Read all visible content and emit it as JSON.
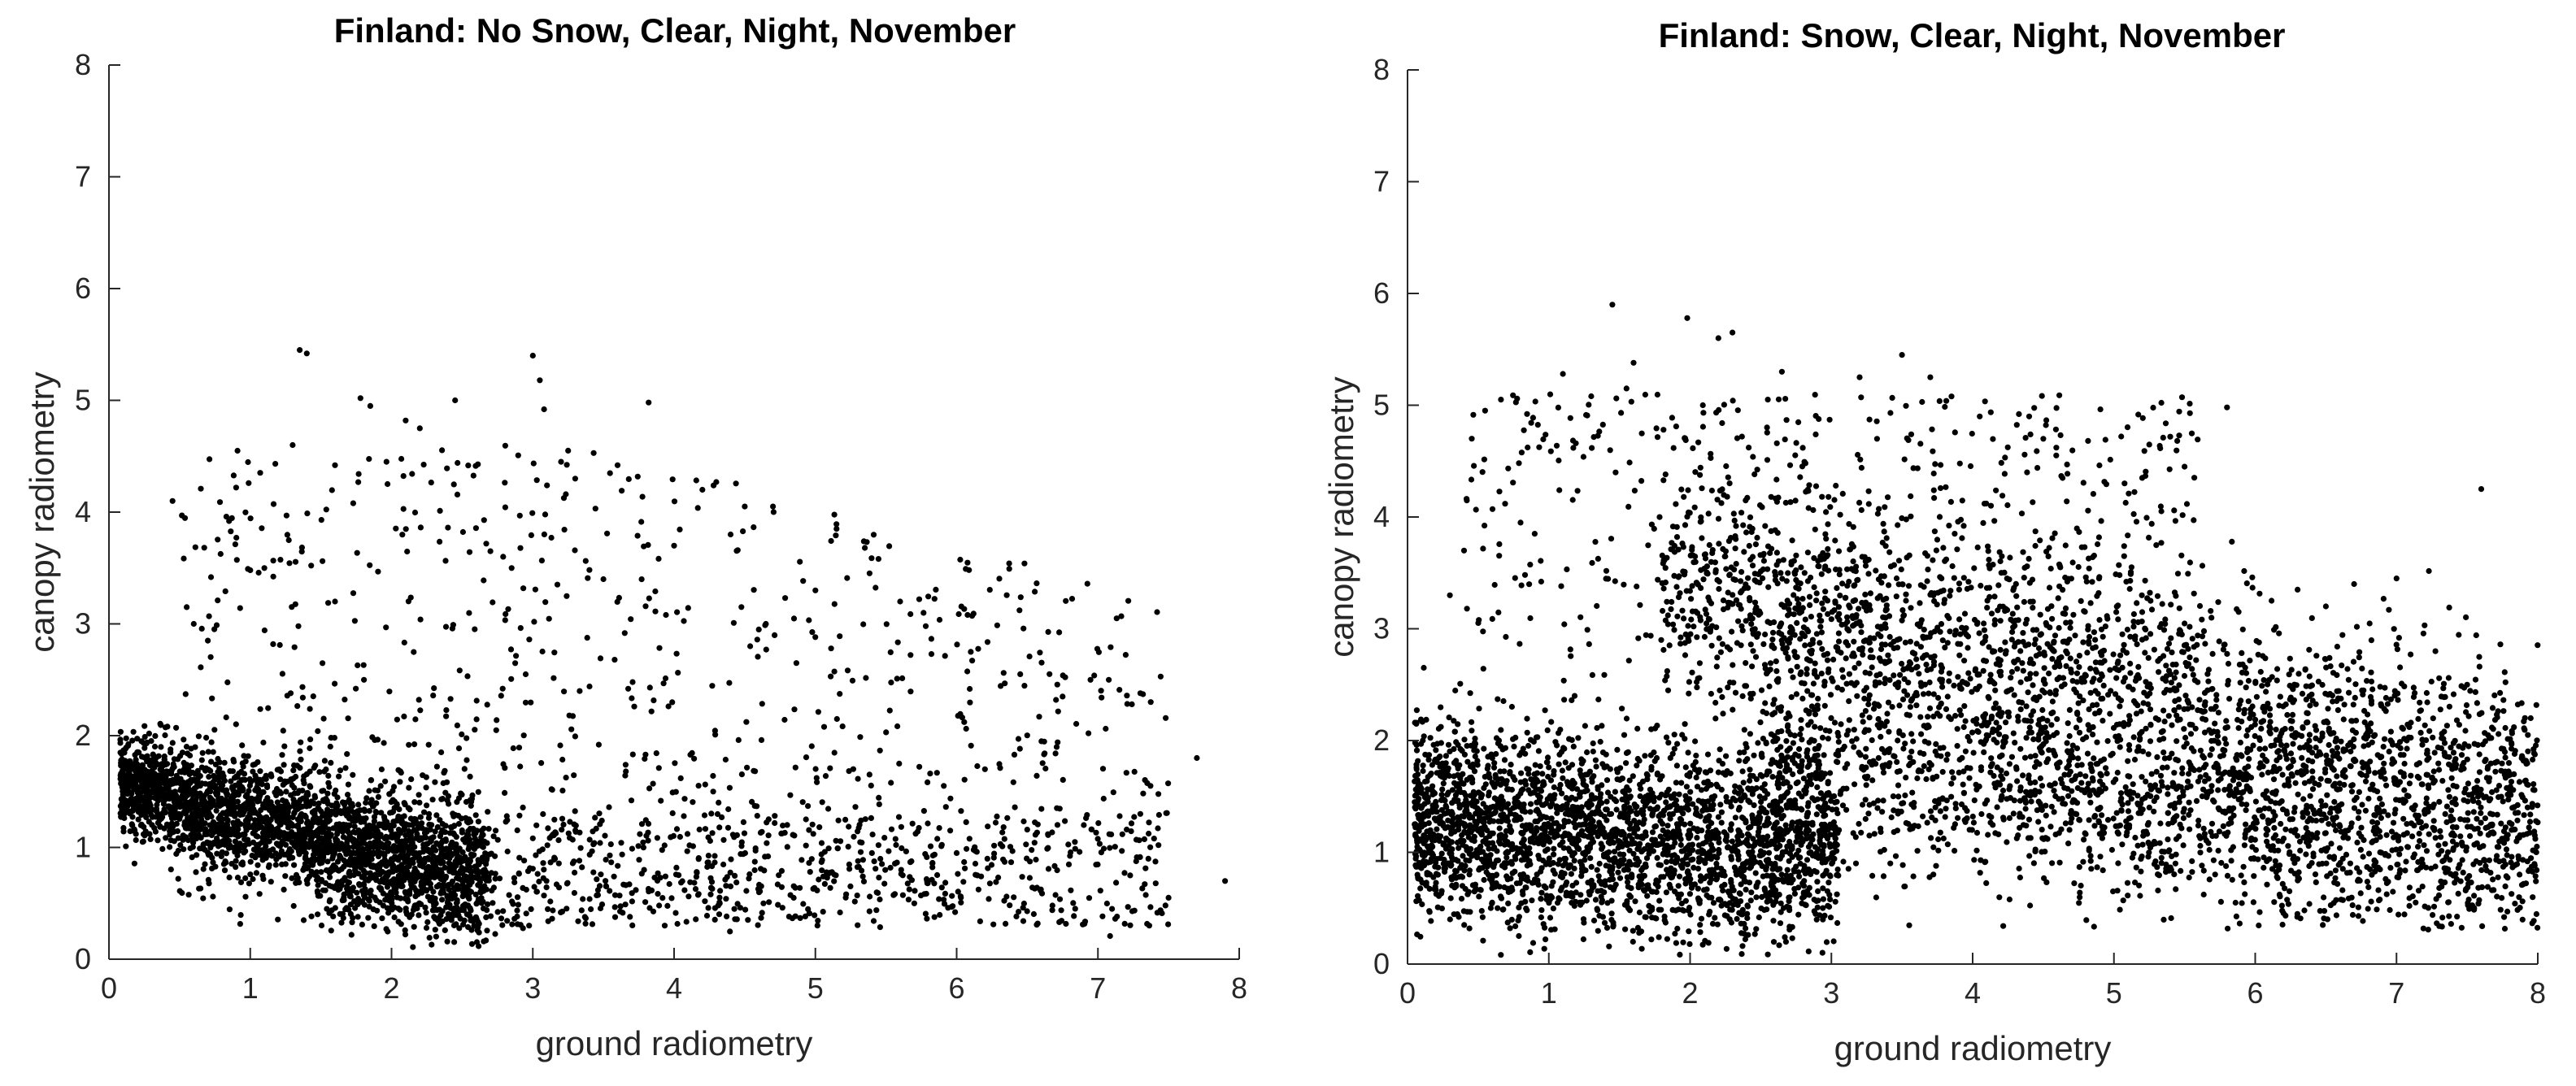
{
  "chart_data": [
    {
      "type": "scatter",
      "title": "Finland: No Snow, Clear, Night, November",
      "xlabel": "ground radiometry",
      "ylabel": "canopy radiometry",
      "xlim": [
        0,
        8
      ],
      "ylim": [
        0,
        8
      ],
      "xticks": [
        "0",
        "1",
        "2",
        "3",
        "4",
        "5",
        "6",
        "7",
        "8"
      ],
      "yticks": [
        "0",
        "1",
        "2",
        "3",
        "4",
        "5",
        "6",
        "7",
        "8"
      ],
      "grid": false,
      "legend": "none",
      "marker_color": "#000000",
      "approx_point_count": 4200,
      "points": [
        [
          1.35,
          5.45
        ],
        [
          1.4,
          5.42
        ],
        [
          3.0,
          5.4
        ],
        [
          3.05,
          5.18
        ],
        [
          3.08,
          4.92
        ],
        [
          1.78,
          5.02
        ],
        [
          2.45,
          5.0
        ],
        [
          3.82,
          4.98
        ],
        [
          2.1,
          4.82
        ],
        [
          2.2,
          4.75
        ],
        [
          1.85,
          4.95
        ],
        [
          1.6,
          4.42
        ],
        [
          1.3,
          4.6
        ],
        [
          3.25,
          4.55
        ],
        [
          3.2,
          4.45
        ],
        [
          0.45,
          4.1
        ],
        [
          0.9,
          4.22
        ],
        [
          0.85,
          3.92
        ],
        [
          1.0,
          3.48
        ],
        [
          1.1,
          3.5
        ],
        [
          3.3,
          4.3
        ],
        [
          3.6,
          4.42
        ],
        [
          4.2,
          4.2
        ],
        [
          4.5,
          4.05
        ],
        [
          4.7,
          4.05
        ],
        [
          4.4,
          3.8
        ],
        [
          5.15,
          3.85
        ],
        [
          5.35,
          3.68
        ],
        [
          5.0,
          3.3
        ],
        [
          5.6,
          3.2
        ],
        [
          6.1,
          2.75
        ],
        [
          6.45,
          2.55
        ],
        [
          6.75,
          2.35
        ],
        [
          7.3,
          2.38
        ],
        [
          7.7,
          1.8
        ],
        [
          7.3,
          1.3
        ],
        [
          7.5,
          0.55
        ],
        [
          7.9,
          0.7
        ],
        [
          7.1,
          0.45
        ],
        [
          6.9,
          1.2
        ],
        [
          6.6,
          1.95
        ],
        [
          6.2,
          1.7
        ],
        [
          6.0,
          0.95
        ],
        [
          5.7,
          0.5
        ],
        [
          5.4,
          0.95
        ],
        [
          0.6,
          3.0
        ],
        [
          0.7,
          2.85
        ],
        [
          0.55,
          3.15
        ],
        [
          1.6,
          3.2
        ],
        [
          2.7,
          3.65
        ],
        [
          2.85,
          3.5
        ],
        [
          3.5,
          3.4
        ],
        [
          4.0,
          3.7
        ],
        [
          4.6,
          2.95
        ],
        [
          4.65,
          3.0
        ]
      ],
      "dense_cluster": {
        "description_values": {
          "x_range": [
            0.05,
            2.6
          ],
          "y_range": [
            0.15,
            2.3
          ],
          "center": [
            0.9,
            1.3
          ]
        }
      }
    },
    {
      "type": "scatter",
      "title": "Finland: Snow, Clear, Night, November",
      "xlabel": "ground radiometry",
      "ylabel": "canopy radiometry",
      "xlim": [
        0,
        8
      ],
      "ylim": [
        0,
        8
      ],
      "xticks": [
        "0",
        "1",
        "2",
        "3",
        "4",
        "5",
        "6",
        "7",
        "8"
      ],
      "yticks": [
        "0",
        "1",
        "2",
        "3",
        "4",
        "5",
        "6",
        "7",
        "8"
      ],
      "grid": false,
      "legend": "none",
      "marker_color": "#000000",
      "approx_point_count": 7000,
      "points": [
        [
          1.45,
          5.9
        ],
        [
          1.98,
          5.78
        ],
        [
          2.2,
          5.6
        ],
        [
          2.3,
          5.65
        ],
        [
          1.3,
          5.08
        ],
        [
          1.1,
          5.28
        ],
        [
          1.55,
          5.15
        ],
        [
          1.6,
          5.38
        ],
        [
          2.65,
          5.3
        ],
        [
          2.55,
          5.05
        ],
        [
          3.2,
          5.25
        ],
        [
          3.5,
          5.45
        ],
        [
          3.7,
          5.25
        ],
        [
          5.8,
          4.98
        ],
        [
          7.6,
          4.25
        ],
        [
          7.0,
          3.45
        ],
        [
          6.7,
          3.4
        ],
        [
          7.5,
          2.5
        ],
        [
          7.95,
          2.2
        ],
        [
          0.4,
          3.7
        ],
        [
          0.3,
          3.3
        ],
        [
          0.8,
          3.95
        ],
        [
          0.9,
          3.85
        ],
        [
          4.05,
          4.9
        ],
        [
          4.4,
          4.9
        ],
        [
          4.5,
          4.7
        ],
        [
          5.2,
          4.35
        ],
        [
          5.5,
          4.45
        ],
        [
          6.3,
          3.35
        ],
        [
          6.5,
          3.2
        ]
      ],
      "dense_cluster": {
        "description_values": {
          "x_range": [
            0.05,
            3.0
          ],
          "y_range": [
            0.1,
            2.8
          ],
          "center": [
            1.1,
            1.2
          ]
        }
      },
      "dense_band": {
        "description_values": {
          "x_range": [
            2.5,
            8.0
          ],
          "y_range": [
            0.3,
            4.5
          ],
          "trend": "decreasing from ~3.5 at x=3 to ~1.8 at x=8"
        }
      }
    }
  ]
}
